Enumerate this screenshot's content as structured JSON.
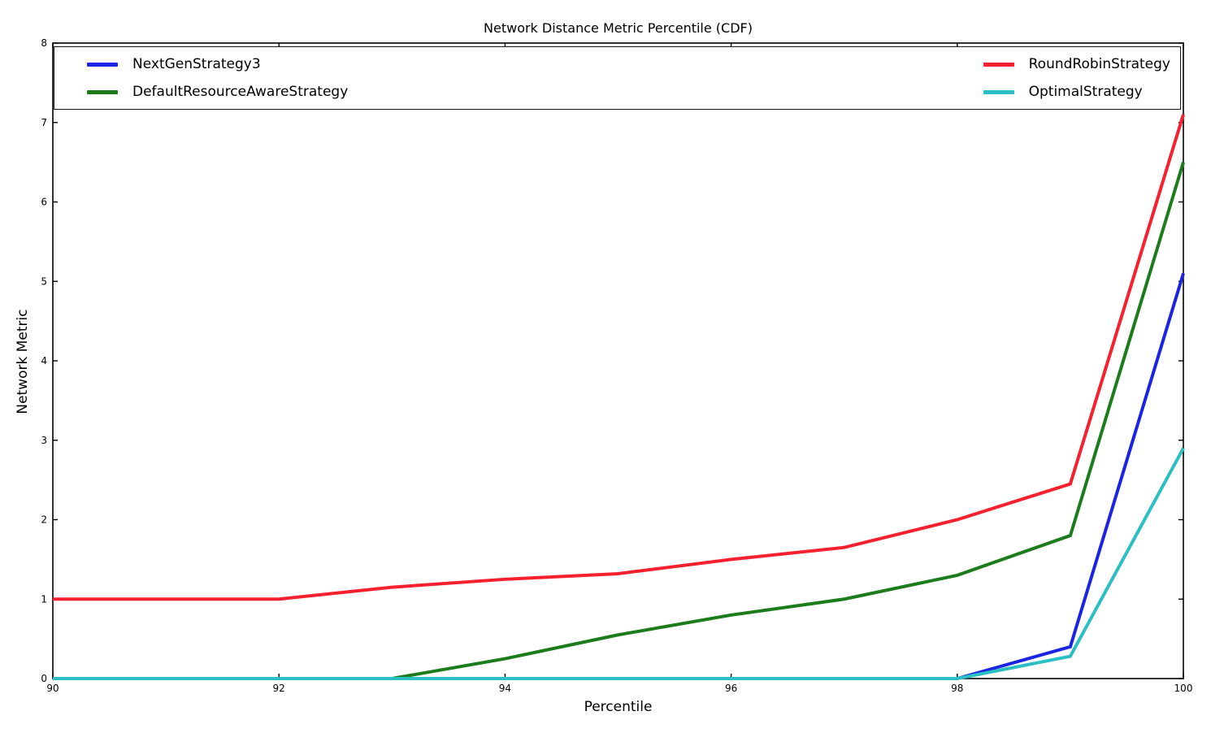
{
  "page": {
    "title": "Network Distance Metric Percentile (CDF)"
  },
  "chart_data": {
    "type": "line",
    "title": "Network Distance Metric Percentile (CDF)",
    "xlabel": "Percentile",
    "ylabel": "Network Metric",
    "xlim": [
      90,
      100
    ],
    "ylim": [
      0,
      8
    ],
    "xticks": [
      90,
      92,
      94,
      96,
      98,
      100
    ],
    "yticks": [
      0,
      1,
      2,
      3,
      4,
      5,
      6,
      7,
      8
    ],
    "grid": false,
    "legend_position": "top inside, expanded, two columns",
    "x": [
      90,
      91,
      92,
      93,
      94,
      95,
      96,
      97,
      98,
      99,
      100
    ],
    "series": [
      {
        "name": "NextGenStrategy3",
        "color": "#1b24e3",
        "values": [
          0,
          0,
          0,
          0,
          0,
          0,
          0,
          0,
          0,
          0.4,
          5.1
        ]
      },
      {
        "name": "DefaultResourceAwareStrategy",
        "color": "#1c7c1c",
        "values": [
          0,
          0,
          0,
          0,
          0.25,
          0.55,
          0.8,
          1.0,
          1.3,
          1.8,
          6.5
        ]
      },
      {
        "name": "RoundRobinStrategy",
        "color": "#f6202e",
        "values": [
          1.0,
          1.0,
          1.0,
          1.15,
          1.25,
          1.32,
          1.5,
          1.65,
          2.0,
          2.45,
          7.1
        ]
      },
      {
        "name": "OptimalStrategy",
        "color": "#2bbfc3",
        "values": [
          0,
          0,
          0,
          0,
          0,
          0,
          0,
          0,
          0,
          0.28,
          2.9
        ]
      }
    ]
  }
}
